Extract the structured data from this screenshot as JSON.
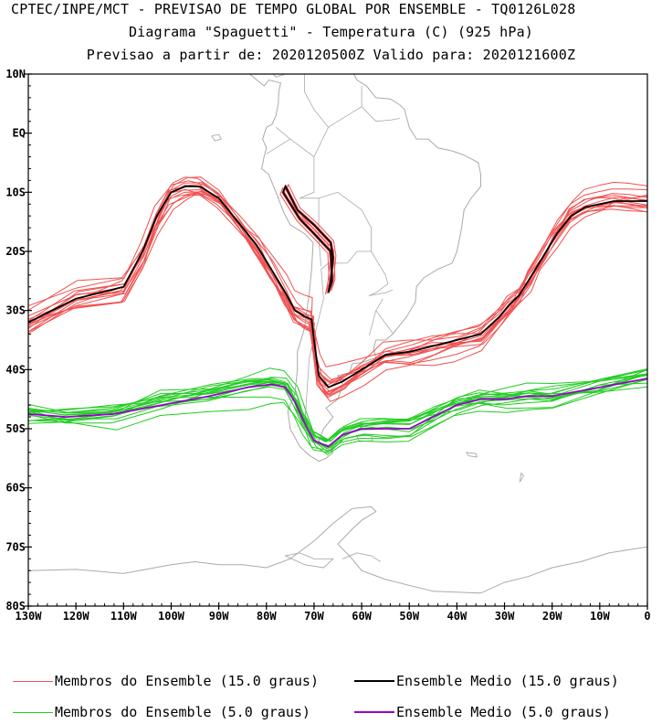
{
  "titles": {
    "line1": "CPTEC/INPE/MCT - PREVISAO DE TEMPO GLOBAL POR ENSEMBLE - TQ0126L028",
    "line2": "Diagrama \"Spaguetti\" - Temperatura (C) (925 hPa)",
    "line3": "Previsao a partir de: 2020120500Z  Valido para: 2020121600Z"
  },
  "axes": {
    "y_labels": [
      "10N",
      "EQ",
      "10S",
      "20S",
      "30S",
      "40S",
      "50S",
      "60S",
      "70S",
      "80S"
    ],
    "x_labels": [
      "130W",
      "120W",
      "110W",
      "100W",
      "90W",
      "80W",
      "70W",
      "60W",
      "50W",
      "40W",
      "30W",
      "20W",
      "10W",
      "0"
    ]
  },
  "colors": {
    "members_15": "#f05050",
    "mean_15": "#000000",
    "members_5": "#22cc22",
    "mean_5": "#9900cc",
    "land": "#aaaaaa"
  },
  "legend": {
    "members_15": "Membros do Ensemble (15.0 graus)",
    "mean_15": "Ensemble Medio (15.0 graus)",
    "members_5": "Membros do Ensemble (5.0 graus)",
    "mean_5": "Ensemble Medio (5.0 graus)"
  },
  "chart_data": {
    "type": "line",
    "x_range": [
      -130,
      0
    ],
    "y_range": [
      -80,
      10
    ],
    "series": [
      {
        "name": "Ensemble Medio (15.0 graus)",
        "lon": [
          -130,
          -120,
          -110,
          -106,
          -103,
          -100,
          -97,
          -94,
          -90,
          -86,
          -82,
          -79,
          -76,
          -74,
          -72,
          -70.5,
          -70,
          -69,
          -67,
          -64,
          -60,
          -55,
          -50,
          -45,
          -40,
          -35,
          -31,
          -29,
          -27,
          -25,
          -22,
          -19,
          -16,
          -13,
          -10,
          -7,
          -4,
          0
        ],
        "lat": [
          -32,
          -28,
          -26,
          -20,
          -14,
          -10,
          -9,
          -9,
          -11,
          -15,
          -19,
          -23,
          -27,
          -30,
          -31,
          -31.5,
          -35,
          -41,
          -43,
          -42,
          -40,
          -37.5,
          -37,
          -36,
          -35,
          -34,
          -31,
          -29,
          -27.5,
          -25,
          -21,
          -17,
          -14,
          -12.5,
          -12,
          -11.5,
          -11.5,
          -11.5
        ]
      },
      {
        "name": "Ensemble Medio (5.0 graus)",
        "lon": [
          -130,
          -122,
          -112,
          -102,
          -92,
          -84,
          -79,
          -76,
          -74,
          -72,
          -70,
          -67,
          -64,
          -60,
          -55,
          -50,
          -45,
          -40,
          -35,
          -30,
          -25,
          -20,
          -10,
          0
        ],
        "lat": [
          -47.5,
          -48,
          -47.5,
          -46,
          -44.5,
          -43,
          -42.5,
          -43,
          -45.5,
          -49,
          -52,
          -53,
          -51,
          -50,
          -50,
          -50,
          -48,
          -46,
          -45,
          -45,
          -44.5,
          -44.5,
          -43,
          -41.5
        ]
      }
    ]
  }
}
